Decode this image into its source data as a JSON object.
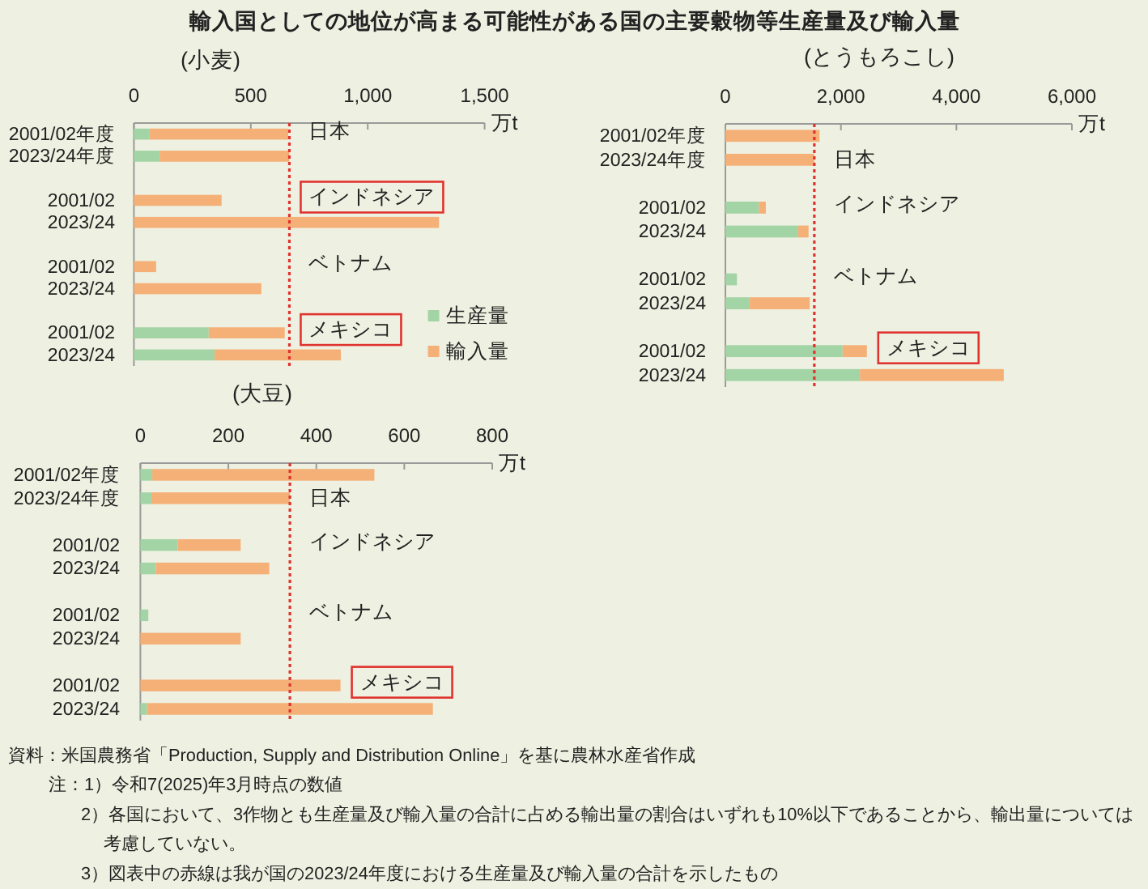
{
  "chart_data": [
    {
      "type": "bar",
      "title": "輸入国としての地位が高まる可能性がある国の主要穀物等生産量及び輸入量",
      "subtitle": "(小麦)",
      "xlabel": "万t",
      "orientation": "horizontal",
      "stacked": true,
      "categories": [
        "2001/02年度",
        "2023/24年度",
        null,
        "2001/02",
        "2023/24",
        null,
        "2001/02",
        "2023/24",
        null,
        "2001/02",
        "2023/24"
      ],
      "series": [
        {
          "name": "生産量",
          "color": "#a3d4a5",
          "values": [
            65,
            110,
            null,
            null,
            null,
            null,
            null,
            null,
            null,
            320,
            345
          ]
        },
        {
          "name": "輸入量",
          "color": "#f5b078",
          "values": [
            595,
            555,
            null,
            375,
            1305,
            null,
            95,
            545,
            null,
            325,
            540
          ]
        }
      ],
      "xlim": [
        0,
        1500
      ],
      "xticks": [
        0,
        500,
        {
          "value": 1000,
          "label": "1,000"
        },
        {
          "value": 1500,
          "label": "1,500"
        }
      ],
      "ref_lines": [
        {
          "axis": "x",
          "value": 665,
          "color": "#e0332f",
          "line_style": "dotted"
        }
      ],
      "legend": "bottom right",
      "annotations": [
        "日本",
        "インドネシア",
        "ベトナム",
        "メキシコ"
      ]
    },
    {
      "type": "bar",
      "title": "(とうもろこし)",
      "xlabel": "万t",
      "orientation": "horizontal",
      "stacked": true,
      "categories": [
        "2001/02年度",
        "2023/24年度",
        null,
        "2001/02",
        "2023/24",
        null,
        "2001/02",
        "2023/24",
        null,
        "2001/02",
        "2023/24"
      ],
      "series": [
        {
          "color": "#a3d4a5",
          "values": [
            null,
            null,
            null,
            580,
            1260,
            null,
            200,
            410,
            null,
            2030,
            2330
          ]
        },
        {
          "color": "#f5b078",
          "values": [
            1630,
            1540,
            null,
            120,
            180,
            null,
            null,
            1050,
            null,
            420,
            2490
          ]
        }
      ],
      "xlim": [
        0,
        6000
      ],
      "xticks": [
        0,
        {
          "value": 2000,
          "label": "2,000"
        },
        {
          "value": 4000,
          "label": "4,000"
        },
        {
          "value": 6000,
          "label": "6,000"
        }
      ],
      "ref_lines": [
        {
          "axis": "x",
          "value": 1540,
          "color": "#e0332f",
          "line_style": "dotted"
        }
      ],
      "annotations": [
        "日本",
        "インドネシア",
        "ベトナム",
        "メキシコ"
      ]
    },
    {
      "type": "bar",
      "title": "(大豆)",
      "xlabel": "万t",
      "orientation": "horizontal",
      "stacked": true,
      "categories": [
        "2001/02年度",
        "2023/24年度",
        null,
        "2001/02",
        "2023/24",
        null,
        "2001/02",
        "2023/24",
        null,
        "2001/02",
        "2023/24"
      ],
      "series": [
        {
          "color": "#a3d4a5",
          "values": [
            27,
            25,
            null,
            85,
            35,
            null,
            18,
            null,
            null,
            null,
            15
          ]
        },
        {
          "color": "#f5b078",
          "values": [
            505,
            315,
            null,
            143,
            258,
            null,
            null,
            228,
            null,
            455,
            650
          ]
        }
      ],
      "xlim": [
        0,
        800
      ],
      "xticks": [
        0,
        200,
        400,
        600,
        800
      ],
      "ref_lines": [
        {
          "axis": "x",
          "value": 340,
          "color": "#e0332f",
          "line_style": "dotted"
        }
      ],
      "annotations": [
        "日本",
        "インドネシア",
        "ベトナム",
        "メキシコ",
        "資料：米国農務省「Production, Supply and Distribution Online」を基に農林水産省作成",
        "注：1）令和7(2025)年3月時点の数値",
        "2）各国において、3作物とも生産量及び輸入量の合計に占める輸出量の割合はいずれも10%以下であることから、輸出量については考慮していない。",
        "3）図表中の赤線は我が国の2023/24年度における生産量及び輸入量の合計を示したもの"
      ]
    }
  ]
}
